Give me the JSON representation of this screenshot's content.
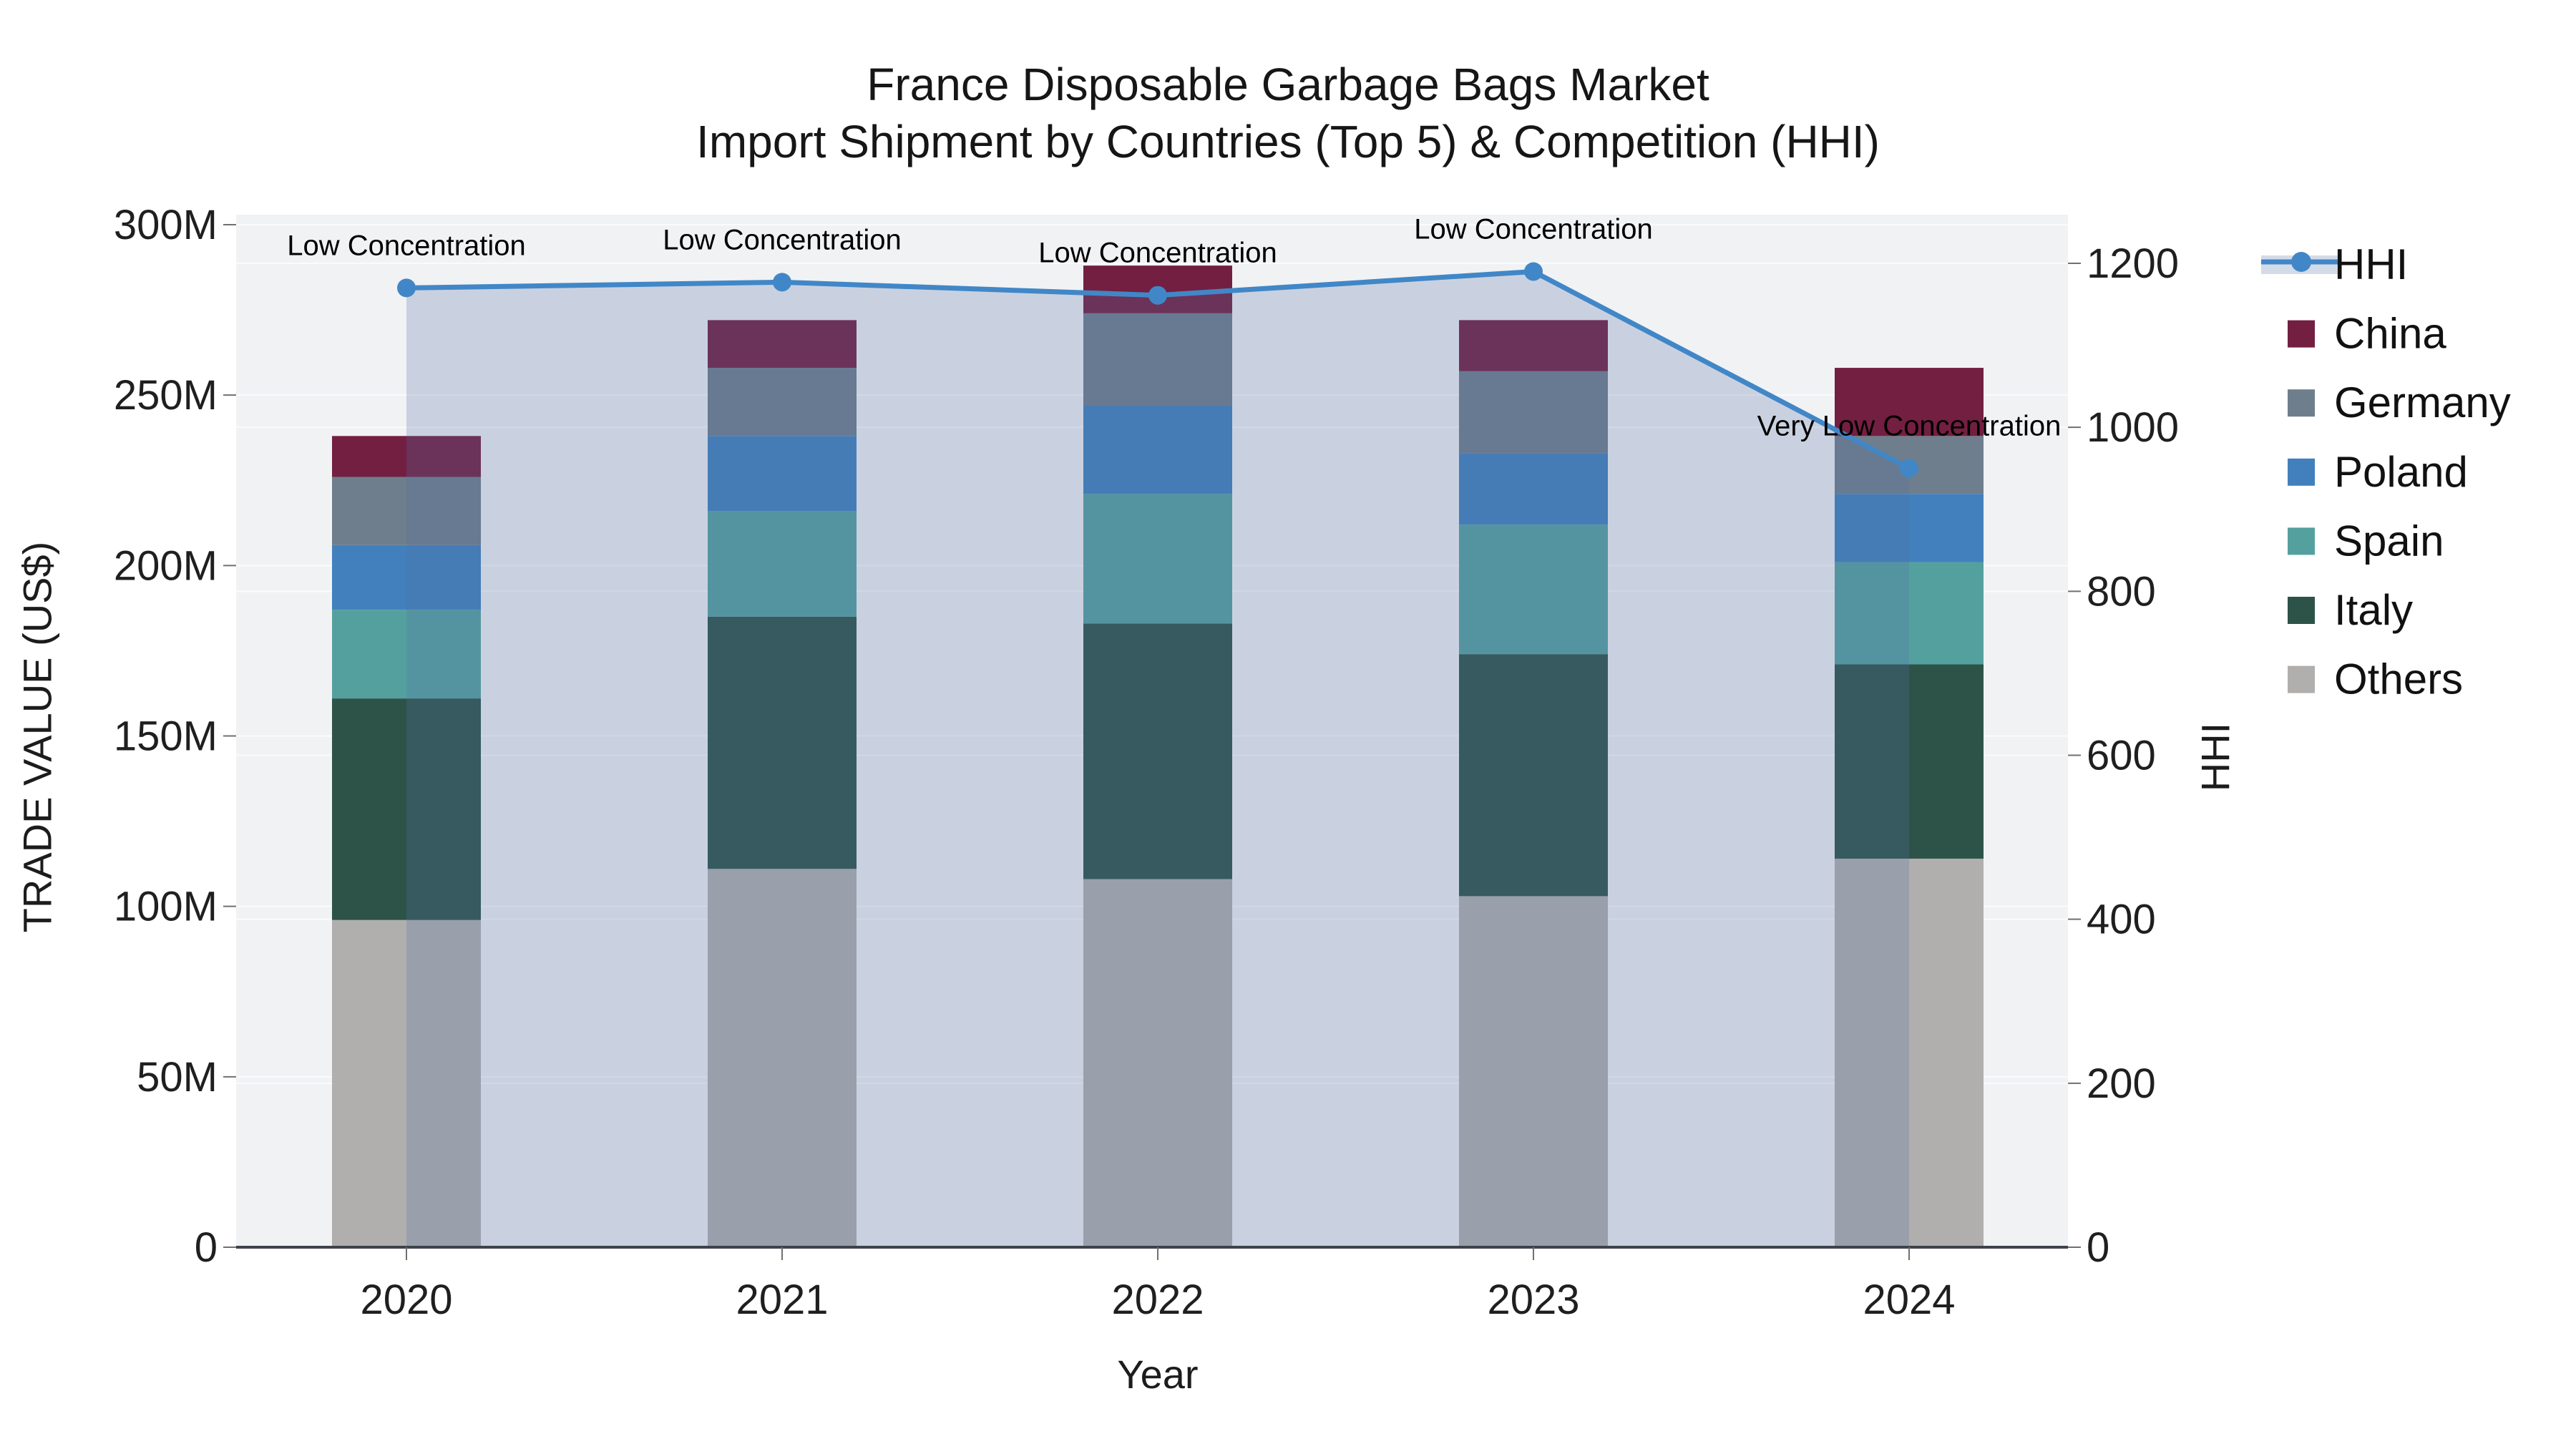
{
  "page": {
    "title_line1": "France Disposable Garbage Bags Market",
    "title_line2": "Import Shipment by Countries (Top 5) & Competition (HHI)"
  },
  "chart_data": {
    "type": "bar",
    "subtype": "stacked-bar-with-line",
    "categories": [
      "2020",
      "2021",
      "2022",
      "2023",
      "2024"
    ],
    "bar_unit": "M US$",
    "series": [
      {
        "name": "Others",
        "color": "#b0afae",
        "values": [
          96,
          111,
          108,
          103,
          114
        ]
      },
      {
        "name": "Italy",
        "color": "#2d5348",
        "values": [
          65,
          74,
          75,
          71,
          57
        ]
      },
      {
        "name": "Spain",
        "color": "#54a09f",
        "values": [
          26,
          31,
          38,
          38,
          30
        ]
      },
      {
        "name": "Poland",
        "color": "#4280bd",
        "values": [
          19,
          22,
          26,
          21,
          20
        ]
      },
      {
        "name": "Germany",
        "color": "#6e7e8d",
        "values": [
          20,
          20,
          27,
          24,
          17
        ]
      },
      {
        "name": "China",
        "color": "#731f41",
        "values": [
          12,
          14,
          14,
          15,
          20
        ]
      }
    ],
    "line_series": {
      "name": "HHI",
      "color": "#4187c7",
      "fill_color": "rgba(85,112,163,0.25)",
      "values": [
        1170,
        1177,
        1161,
        1190,
        950
      ]
    },
    "annotations": [
      {
        "category": "2020",
        "text": "Low Concentration"
      },
      {
        "category": "2021",
        "text": "Low Concentration"
      },
      {
        "category": "2022",
        "text": "Low Concentration"
      },
      {
        "category": "2023",
        "text": "Low Concentration"
      },
      {
        "category": "2024",
        "text": "Very Low Concentration"
      }
    ],
    "x_axis": {
      "title": "Year"
    },
    "y_left": {
      "title": "TRADE VALUE (US$)",
      "tick_labels": [
        "0",
        "50M",
        "100M",
        "150M",
        "200M",
        "250M",
        "300M"
      ],
      "range": [
        0,
        300
      ]
    },
    "y_right": {
      "title": "HHI",
      "tick_labels": [
        "0",
        "200",
        "400",
        "600",
        "800",
        "1000",
        "1200"
      ],
      "range": [
        0,
        1200
      ]
    },
    "legend": [
      "HHI",
      "China",
      "Germany",
      "Poland",
      "Spain",
      "Italy",
      "Others"
    ],
    "grid": true,
    "legend_position": "right"
  }
}
